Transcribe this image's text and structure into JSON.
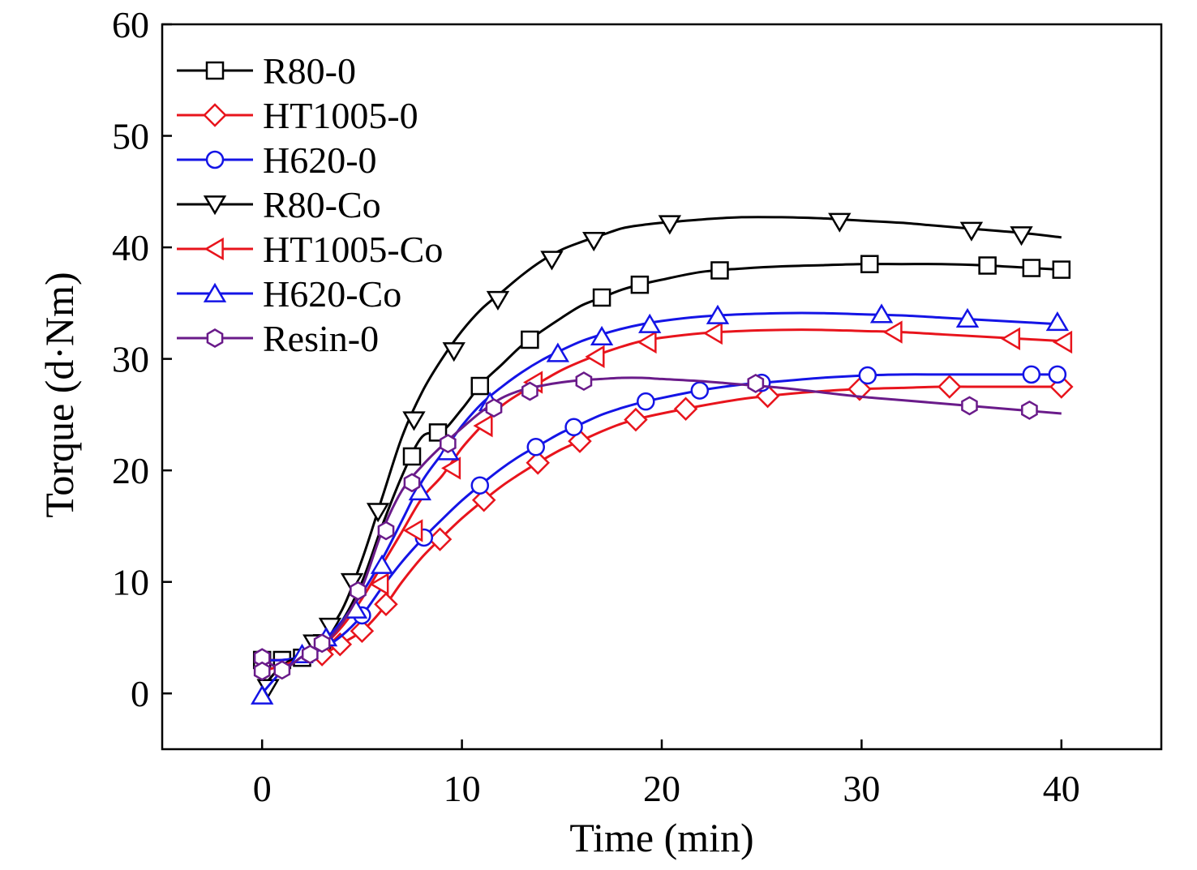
{
  "chart_data": {
    "type": "line",
    "title": "",
    "xlabel": "Time (min)",
    "ylabel": "Torque (d·Nm)",
    "xlim": [
      -5,
      45
    ],
    "ylim": [
      -5,
      60
    ],
    "xticks": [
      0,
      10,
      20,
      30,
      40
    ],
    "yticks": [
      0,
      10,
      20,
      30,
      40,
      50,
      60
    ],
    "grid": false,
    "legend_position": "top-left",
    "series": [
      {
        "name": "R80-0",
        "color": "#000000",
        "marker": "square",
        "x": [
          0,
          1,
          2,
          3,
          4,
          5,
          6,
          7,
          8,
          9,
          10,
          11,
          12,
          13,
          14,
          15,
          16,
          17,
          18,
          19,
          20,
          22,
          24,
          26,
          28,
          30,
          32,
          34,
          36,
          38,
          40
        ],
        "y": [
          3,
          3,
          3.2,
          4.5,
          6.5,
          10,
          15,
          19.5,
          23,
          23.5,
          25.5,
          27.8,
          29.5,
          31.2,
          32.5,
          33.7,
          34.8,
          35.5,
          36.2,
          36.7,
          37.1,
          37.8,
          38.1,
          38.3,
          38.4,
          38.5,
          38.5,
          38.5,
          38.4,
          38.2,
          38.0
        ],
        "marker_x": [
          0,
          1,
          2,
          3,
          7.5,
          8.8,
          10.9,
          13.4,
          17,
          18.9,
          22.9,
          30.4,
          36.3,
          38.5,
          40
        ]
      },
      {
        "name": "HT1005-0",
        "color": "#e8141c",
        "marker": "diamond",
        "x": [
          0,
          1,
          2,
          3,
          4,
          5,
          6,
          7,
          8,
          9,
          10,
          11,
          12,
          13,
          14,
          15,
          16,
          17,
          18,
          19,
          20,
          22,
          24,
          26,
          28,
          30,
          32,
          34,
          36,
          38,
          40
        ],
        "y": [
          3,
          3,
          3.2,
          3.5,
          4.5,
          5.6,
          7.5,
          10,
          12.2,
          14,
          15.7,
          17.2,
          18.6,
          19.8,
          20.9,
          21.9,
          22.7,
          23.5,
          24.2,
          24.7,
          25.1,
          25.8,
          26.4,
          26.8,
          27.1,
          27.3,
          27.4,
          27.5,
          27.5,
          27.5,
          27.5
        ],
        "marker_x": [
          3,
          3.9,
          5,
          6.2,
          8.9,
          11.1,
          13.8,
          15.9,
          18.7,
          21.2,
          25.3,
          29.9,
          34.4,
          40
        ]
      },
      {
        "name": "H620-0",
        "color": "#1414e6",
        "marker": "circle",
        "x": [
          0,
          1,
          2,
          3,
          4,
          5,
          6,
          7,
          8,
          9,
          10,
          11,
          12,
          13,
          14,
          15,
          16,
          17,
          18,
          19,
          20,
          22,
          24,
          26,
          28,
          30,
          32,
          34,
          36,
          38,
          40
        ],
        "y": [
          3,
          3,
          3.3,
          4,
          5.2,
          7,
          9.5,
          11.8,
          13.8,
          15.6,
          17.3,
          18.8,
          20.2,
          21.4,
          22.4,
          23.4,
          24.2,
          25,
          25.6,
          26.1,
          26.5,
          27.2,
          27.7,
          28,
          28.3,
          28.5,
          28.6,
          28.6,
          28.6,
          28.6,
          28.6
        ],
        "marker_x": [
          5,
          8.1,
          10.9,
          13.7,
          15.6,
          19.2,
          21.9,
          25,
          30.3,
          38.5,
          39.8
        ]
      },
      {
        "name": "R80-Co",
        "color": "#000000",
        "marker": "triangle-down",
        "x": [
          0,
          1,
          2,
          3,
          4,
          5,
          6,
          7,
          8,
          9,
          10,
          11,
          12,
          13,
          14,
          15,
          16,
          17,
          18,
          19,
          20,
          22,
          24,
          26,
          28,
          30,
          32,
          34,
          36,
          38,
          40
        ],
        "y": [
          0.5,
          2.5,
          3.5,
          5,
          7.5,
          12,
          17.5,
          23,
          27,
          30,
          32.5,
          34.5,
          36,
          37.5,
          38.8,
          39.8,
          40.5,
          41.1,
          41.7,
          42,
          42.2,
          42.5,
          42.7,
          42.7,
          42.6,
          42.4,
          42.2,
          41.9,
          41.6,
          41.3,
          40.9
        ],
        "marker_x": [
          0.3,
          2.6,
          3.4,
          4.5,
          5.8,
          7.6,
          9.6,
          11.8,
          14.5,
          16.6,
          20.4,
          28.9,
          35.5,
          38
        ],
        "marker_y": [
          0.5,
          4.5,
          6,
          10,
          16.3,
          24.5,
          30.7,
          35.3,
          38.9,
          40.6,
          42.1,
          42.3,
          41.5,
          41.1
        ]
      },
      {
        "name": "HT1005-Co",
        "color": "#e8141c",
        "marker": "triangle-left",
        "x": [
          0,
          1,
          2,
          3,
          4,
          5,
          6,
          7,
          8,
          9,
          10,
          11,
          12,
          13,
          14,
          15,
          16,
          17,
          18,
          19,
          20,
          22,
          24,
          26,
          28,
          30,
          32,
          34,
          36,
          38,
          40
        ],
        "y": [
          2,
          2.5,
          3.2,
          4.2,
          6,
          8.5,
          11.5,
          14.5,
          17.5,
          19.5,
          22,
          24,
          25.8,
          27,
          28,
          29,
          29.8,
          30.5,
          31.1,
          31.6,
          31.9,
          32.3,
          32.5,
          32.6,
          32.6,
          32.5,
          32.4,
          32.2,
          32,
          31.8,
          31.6
        ],
        "marker_x": [
          5.9,
          7.6,
          9.5,
          11.1,
          13.6,
          16.7,
          19.3,
          22.6,
          31.6,
          37.5,
          40.1
        ],
        "marker_y": [
          9.8,
          14.6,
          20.2,
          24,
          27.9,
          30.2,
          31.5,
          32.3,
          32.4,
          31.8,
          31.5
        ]
      },
      {
        "name": "H620-Co",
        "color": "#1414e6",
        "marker": "triangle-up",
        "x": [
          0,
          1,
          2,
          3,
          4,
          5,
          6,
          7,
          8,
          9,
          10,
          11,
          12,
          13,
          14,
          15,
          16,
          17,
          18,
          19,
          20,
          22,
          24,
          26,
          28,
          30,
          32,
          34,
          36,
          38,
          40
        ],
        "y": [
          0,
          2,
          3.3,
          4.6,
          6.5,
          9,
          12,
          15.5,
          19,
          21.5,
          24,
          26,
          27.5,
          28.8,
          29.9,
          30.8,
          31.6,
          32.2,
          32.7,
          33.1,
          33.4,
          33.8,
          34,
          34.1,
          34.1,
          34,
          33.9,
          33.7,
          33.5,
          33.3,
          33.1
        ],
        "marker_x": [
          0,
          2,
          3.2,
          4.7,
          6,
          7.9,
          9.3,
          11.4,
          14.8,
          17,
          19.4,
          22.8,
          31,
          35.3,
          39.8
        ],
        "marker_y": [
          -0.2,
          3.5,
          5,
          7.5,
          11.5,
          18.1,
          21.7,
          26.1,
          30.5,
          32,
          33.1,
          33.9,
          34,
          33.6,
          33.3
        ]
      },
      {
        "name": "Resin-0",
        "color": "#6a1b8a",
        "marker": "hexagon",
        "x": [
          0,
          1,
          2,
          3,
          4,
          5,
          6,
          7,
          8,
          9,
          10,
          11,
          12,
          13,
          14,
          15,
          16,
          17,
          18,
          19,
          20,
          22,
          24,
          26,
          28,
          30,
          32,
          34,
          36,
          38,
          40
        ],
        "y": [
          3.2,
          2.2,
          3.3,
          4.3,
          6.3,
          9.5,
          14.5,
          18.2,
          20.4,
          22.2,
          23.8,
          25.3,
          26.5,
          27.2,
          27.6,
          27.9,
          28.1,
          28.2,
          28.3,
          28.3,
          28.2,
          28,
          27.7,
          27.4,
          27,
          26.6,
          26.3,
          26,
          25.7,
          25.4,
          25.1
        ],
        "marker_x": [
          0,
          0,
          1,
          2.4,
          3,
          4.8,
          6.2,
          7.5,
          9.3,
          11.6,
          13.4,
          16.1,
          24.7,
          35.4,
          38.4
        ],
        "marker_y": [
          3.2,
          2,
          2.1,
          3.5,
          4.5,
          9.2,
          14.6,
          18.9,
          22.4,
          25.6,
          27.1,
          28,
          27.8,
          25.8,
          25.4
        ]
      }
    ]
  }
}
